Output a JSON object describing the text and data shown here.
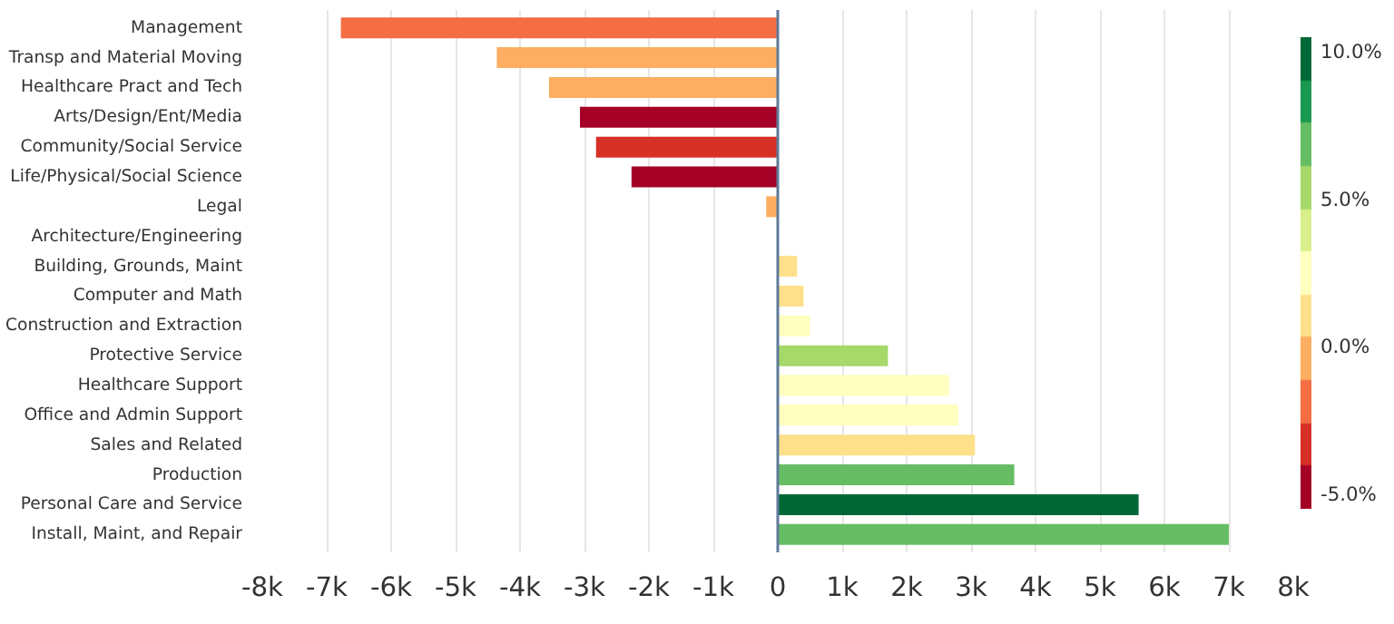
{
  "chart_data": {
    "type": "bar",
    "orientation": "horizontal",
    "categories": [
      "Management",
      "Transp and Material Moving",
      "Healthcare Pract and Tech",
      "Arts/Design/Ent/Media",
      "Community/Social Service",
      "Life/Physical/Social Science",
      "Legal",
      "Architecture/Engineering",
      "Building, Grounds, Maint",
      "Computer and Math",
      "Construction and Extraction",
      "Protective Service",
      "Healthcare Support",
      "Office and Admin Support",
      "Sales and Related",
      "Production",
      "Personal Care and Service",
      "Install, Maint, and Repair"
    ],
    "values": [
      -6780,
      -4360,
      -3550,
      -3070,
      -2820,
      -2270,
      -180,
      null,
      300,
      400,
      500,
      1710,
      2660,
      2800,
      3060,
      3670,
      5600,
      7000
    ],
    "cvalues": [
      -2.5,
      -1,
      0,
      -5.5,
      -3.5,
      -5.5,
      -1,
      null,
      1.5,
      1.5,
      2.5,
      5,
      3,
      2.5,
      1.5,
      7,
      10.5,
      7.5
    ],
    "clim": [
      -5.5,
      10.5
    ],
    "cticks": [
      {
        "value": -5,
        "label": "-5.0%"
      },
      {
        "value": 0,
        "label": "0.0%"
      },
      {
        "value": 5,
        "label": "5.0%"
      },
      {
        "value": 10,
        "label": "10.0%"
      }
    ],
    "xlim": [
      -8000,
      8000
    ],
    "xticks": [
      {
        "value": -8000,
        "label": "-8k"
      },
      {
        "value": -7000,
        "label": "-7k"
      },
      {
        "value": -6000,
        "label": "-6k"
      },
      {
        "value": -5000,
        "label": "-5k"
      },
      {
        "value": -4000,
        "label": "-4k"
      },
      {
        "value": -3000,
        "label": "-3k"
      },
      {
        "value": -2000,
        "label": "-2k"
      },
      {
        "value": -1000,
        "label": "-1k"
      },
      0,
      {
        "value": 1000,
        "label": "1k"
      },
      {
        "value": 2000,
        "label": "2k"
      },
      {
        "value": 3000,
        "label": "3k"
      },
      {
        "value": 4000,
        "label": "4k"
      },
      {
        "value": 5000,
        "label": "5k"
      },
      {
        "value": 6000,
        "label": "6k"
      },
      {
        "value": 7000,
        "label": "7k"
      },
      {
        "value": 8000,
        "label": "8k"
      }
    ],
    "ref_lines": [
      {
        "axis": "x",
        "value": 0,
        "color": "#5f7a99"
      }
    ],
    "grid": "x"
  }
}
